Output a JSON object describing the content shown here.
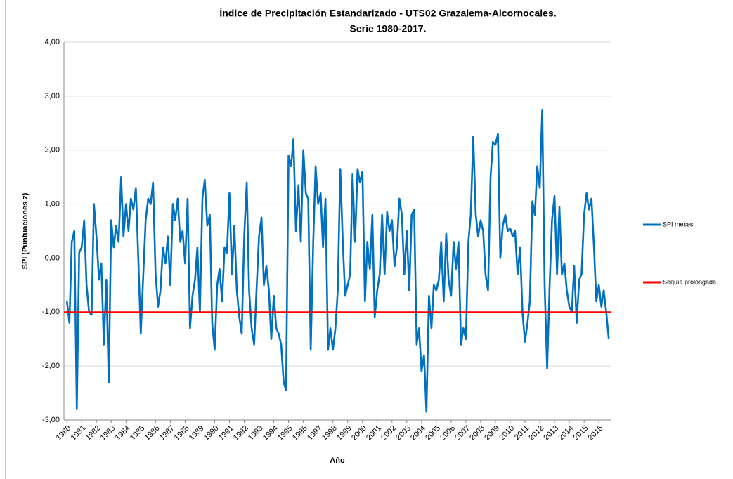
{
  "chart_data": {
    "type": "line",
    "title": "Índice de Precipitación Estandarizado - UTS02 Grazalema-Alcornocales.",
    "subtitle": "Serie 1980-2017.",
    "y_label": "SPI (Puntuaciones z)",
    "x_label": "Año",
    "xlim": [
      1979.8,
      2016.85
    ],
    "xticks": [
      1980,
      1981,
      1982,
      1983,
      1984,
      1985,
      1986,
      1987,
      1988,
      1989,
      1990,
      1991,
      1992,
      1993,
      1994,
      1995,
      1996,
      1997,
      1998,
      1999,
      2000,
      2001,
      2002,
      2003,
      2004,
      2005,
      2006,
      2007,
      2008,
      2009,
      2010,
      2011,
      2012,
      2013,
      2014,
      2015,
      2016
    ],
    "ylim": [
      -3,
      4
    ],
    "yticks": [
      {
        "value": -3,
        "label": "-3,00"
      },
      {
        "value": -2,
        "label": "-2,00"
      },
      {
        "value": -1,
        "label": "-1,00"
      },
      {
        "value": 0,
        "label": "0,00"
      },
      {
        "value": 1,
        "label": "1,00"
      },
      {
        "value": 2,
        "label": "2,00"
      },
      {
        "value": 3,
        "label": "3,00"
      },
      {
        "value": 4,
        "label": "4,00"
      }
    ],
    "grid": true,
    "legend": "right",
    "series": [
      {
        "name": "SPI  meses",
        "color": "#0070c0",
        "x": [
          1980,
          1980.17,
          1980.33,
          1980.5,
          1980.67,
          1980.83,
          1981,
          1981.17,
          1981.33,
          1981.5,
          1981.67,
          1981.83,
          1982,
          1982.17,
          1982.33,
          1982.5,
          1982.67,
          1982.83,
          1983,
          1983.17,
          1983.33,
          1983.5,
          1983.67,
          1983.83,
          1984,
          1984.17,
          1984.33,
          1984.5,
          1984.67,
          1984.83,
          1985,
          1985.17,
          1985.33,
          1985.5,
          1985.67,
          1985.83,
          1986,
          1986.17,
          1986.33,
          1986.5,
          1986.67,
          1986.83,
          1987,
          1987.17,
          1987.33,
          1987.5,
          1987.67,
          1987.83,
          1988,
          1988.17,
          1988.33,
          1988.5,
          1988.67,
          1988.83,
          1989,
          1989.17,
          1989.33,
          1989.5,
          1989.67,
          1989.83,
          1990,
          1990.17,
          1990.33,
          1990.5,
          1990.67,
          1990.83,
          1991,
          1991.17,
          1991.33,
          1991.5,
          1991.67,
          1991.83,
          1992,
          1992.17,
          1992.33,
          1992.5,
          1992.67,
          1992.83,
          1993,
          1993.17,
          1993.33,
          1993.5,
          1993.67,
          1993.83,
          1994,
          1994.17,
          1994.33,
          1994.5,
          1994.67,
          1994.83,
          1995,
          1995.17,
          1995.33,
          1995.5,
          1995.67,
          1995.83,
          1996,
          1996.17,
          1996.33,
          1996.5,
          1996.67,
          1996.83,
          1997,
          1997.17,
          1997.33,
          1997.5,
          1997.67,
          1997.83,
          1998,
          1998.17,
          1998.33,
          1998.5,
          1998.67,
          1998.83,
          1999,
          1999.17,
          1999.33,
          1999.5,
          1999.67,
          1999.83,
          2000,
          2000.17,
          2000.33,
          2000.5,
          2000.67,
          2000.83,
          2001,
          2001.17,
          2001.33,
          2001.5,
          2001.67,
          2001.83,
          2002,
          2002.17,
          2002.33,
          2002.5,
          2002.67,
          2002.83,
          2003,
          2003.17,
          2003.33,
          2003.5,
          2003.67,
          2003.83,
          2004,
          2004.17,
          2004.33,
          2004.5,
          2004.67,
          2004.83,
          2005,
          2005.17,
          2005.33,
          2005.5,
          2005.67,
          2005.83,
          2006,
          2006.17,
          2006.33,
          2006.5,
          2006.67,
          2006.83,
          2007,
          2007.17,
          2007.33,
          2007.5,
          2007.67,
          2007.83,
          2008,
          2008.17,
          2008.33,
          2008.5,
          2008.67,
          2008.83,
          2009,
          2009.17,
          2009.33,
          2009.5,
          2009.67,
          2009.83,
          2010,
          2010.17,
          2010.33,
          2010.5,
          2010.67,
          2010.83,
          2011,
          2011.17,
          2011.33,
          2011.5,
          2011.67,
          2011.83,
          2012,
          2012.17,
          2012.33,
          2012.5,
          2012.67,
          2012.83,
          2013,
          2013.17,
          2013.33,
          2013.5,
          2013.67,
          2013.83,
          2014,
          2014.17,
          2014.33,
          2014.5,
          2014.67,
          2014.83,
          2015,
          2015.17,
          2015.33,
          2015.5,
          2015.67,
          2015.83,
          2016,
          2016.17,
          2016.33,
          2016.5,
          2016.67
        ],
        "values": [
          -0.8,
          -1.2,
          0.3,
          0.5,
          -2.8,
          0.1,
          0.2,
          0.7,
          -0.5,
          -1.0,
          -1.05,
          1.0,
          0.4,
          -0.4,
          -0.1,
          -1.6,
          -0.4,
          -2.3,
          0.7,
          0.2,
          0.6,
          0.3,
          1.5,
          0.4,
          1.0,
          0.5,
          1.1,
          0.9,
          1.3,
          0.0,
          -1.4,
          -0.3,
          0.7,
          1.1,
          1.0,
          1.4,
          -0.3,
          -0.9,
          -0.6,
          0.2,
          -0.1,
          0.4,
          -0.5,
          1.0,
          0.7,
          1.1,
          0.3,
          0.5,
          -0.1,
          1.1,
          -1.3,
          -0.7,
          -0.4,
          0.2,
          -1.0,
          1.1,
          1.45,
          0.6,
          0.8,
          -1.2,
          -1.7,
          -0.5,
          -0.2,
          -0.8,
          0.2,
          0.1,
          1.2,
          -0.3,
          0.6,
          -0.6,
          -1.1,
          -1.4,
          0.4,
          1.4,
          -0.6,
          -1.3,
          -1.6,
          -0.6,
          0.4,
          0.75,
          -0.5,
          -0.15,
          -0.6,
          -1.5,
          -0.7,
          -1.3,
          -1.4,
          -1.6,
          -2.3,
          -2.45,
          1.9,
          1.7,
          2.2,
          0.5,
          1.35,
          0.3,
          2.0,
          1.2,
          1.1,
          -1.7,
          0.3,
          1.7,
          1.0,
          1.2,
          0.2,
          1.1,
          -1.7,
          -1.3,
          -1.7,
          -1.3,
          -0.6,
          1.65,
          0.3,
          -0.7,
          -0.5,
          -0.3,
          1.55,
          0.3,
          1.65,
          1.4,
          1.6,
          -0.8,
          0.3,
          -0.2,
          0.8,
          -1.1,
          -0.6,
          -0.3,
          0.8,
          -0.3,
          0.85,
          0.5,
          0.7,
          -0.15,
          0.2,
          1.1,
          0.8,
          -0.3,
          0.5,
          -0.6,
          0.8,
          0.9,
          -1.6,
          -1.3,
          -2.1,
          -1.8,
          -2.85,
          -0.7,
          -1.3,
          -0.5,
          -0.6,
          -0.4,
          0.3,
          -0.8,
          0.45,
          -0.4,
          -0.7,
          0.3,
          -0.2,
          0.3,
          -1.6,
          -1.3,
          -1.5,
          0.3,
          0.8,
          2.25,
          0.8,
          0.4,
          0.7,
          0.5,
          -0.3,
          -0.6,
          1.5,
          2.15,
          2.1,
          2.3,
          0.0,
          0.6,
          0.8,
          0.5,
          0.55,
          0.4,
          0.5,
          -0.3,
          0.2,
          -1.0,
          -1.55,
          -1.2,
          -0.8,
          1.05,
          0.8,
          1.7,
          1.3,
          2.75,
          -0.5,
          -2.05,
          -0.5,
          0.7,
          1.15,
          -0.3,
          0.95,
          -0.3,
          -0.1,
          -0.6,
          -0.9,
          -1.0,
          -0.15,
          -1.2,
          -0.4,
          -0.3,
          0.8,
          1.2,
          0.9,
          1.1,
          0.2,
          -0.8,
          -0.5,
          -0.9,
          -0.6,
          -1.0,
          -1.5
        ]
      },
      {
        "name": "Sequía prolongada",
        "color": "#ff0000",
        "x": [
          1979.8,
          2016.85
        ],
        "values": [
          -1,
          -1
        ]
      }
    ]
  }
}
